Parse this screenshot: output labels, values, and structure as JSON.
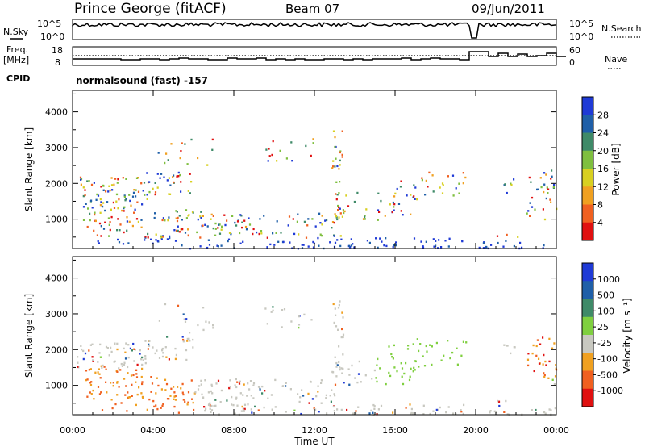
{
  "header": {
    "station": "Prince George (fitACF)",
    "beam": "Beam 07",
    "date": "09/Jun/2011",
    "mode": "normalsound (fast) -157"
  },
  "side_labels": {
    "n_sky": "N.Sky",
    "n_search": "N.Search",
    "freq": "Freq.",
    "freq_unit": "[MHz]",
    "nave": "Nave",
    "cpid": "CPID"
  },
  "noise_panel": {
    "left_ticks": [
      "10^5",
      "10^0"
    ],
    "right_ticks": [
      "10^5",
      "10^0"
    ]
  },
  "freq_panel": {
    "left_ticks": [
      "18",
      "8"
    ],
    "right_ticks": [
      "60",
      "0"
    ]
  },
  "colors": {
    "power": [
      "#1f3ad6",
      "#1f5fa8",
      "#3f8a68",
      "#7fbf3f",
      "#d8d020",
      "#f0a020",
      "#f06020",
      "#e01010"
    ],
    "velocity": [
      "#1f3ad6",
      "#1f5fa8",
      "#3f8a68",
      "#7fcf3f",
      "#c8c8c0",
      "#f0a020",
      "#f06020",
      "#e01010"
    ]
  },
  "chart_data": [
    {
      "type": "heatmap",
      "name": "power",
      "ylabel": "Slant Range [km]",
      "xlabel": "Time UT",
      "x_ticks": [
        "00:00",
        "04:00",
        "08:00",
        "12:00",
        "16:00",
        "20:00",
        "00:00"
      ],
      "y_ticks": [
        1000,
        2000,
        3000,
        4000
      ],
      "ylim": [
        180,
        4600
      ],
      "colorbar": {
        "label": "Power [dB]",
        "ticks": [
          "28",
          "24",
          "20",
          "16",
          "12",
          "8",
          "4"
        ]
      }
    },
    {
      "type": "heatmap",
      "name": "velocity",
      "ylabel": "Slant Range [km]",
      "xlabel": "Time UT",
      "x_ticks": [
        "00:00",
        "04:00",
        "08:00",
        "12:00",
        "16:00",
        "20:00",
        "00:00"
      ],
      "y_ticks": [
        1000,
        2000,
        3000,
        4000
      ],
      "ylim": [
        180,
        4600
      ],
      "colorbar": {
        "label": "Velocity [m s⁻¹]",
        "ticks": [
          "1000",
          "500",
          "100",
          "25",
          "-25",
          "-100",
          "-500",
          "-1000"
        ]
      }
    }
  ]
}
